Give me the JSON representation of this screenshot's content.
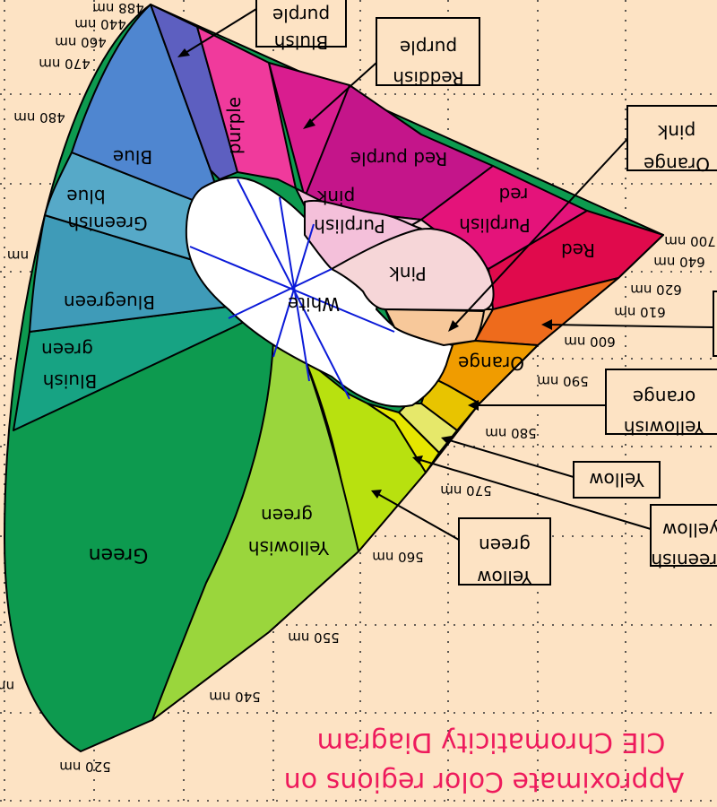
{
  "title_lines": [
    "CIE Chromaticity Diagram",
    "Approximate Color regions on"
  ],
  "wavelength_labels": [
    "440 nm",
    "460 nm",
    "470 nm",
    "480 nm",
    "nm",
    "520 nm",
    "540 nm",
    "550 nm",
    "560 nm",
    "570 nm",
    "580 nm",
    "590 nm",
    "600 nm",
    "610 nm",
    "620 nm",
    "640 nm",
    "700 nm",
    "nm",
    "488 nm"
  ],
  "regions": {
    "blue": "Blue",
    "greenish_blue_1": "Greenish",
    "greenish_blue_2": "blue",
    "bluegreen": "Bluegreen",
    "bluish_green_1": "Bluish",
    "bluish_green_2": "green",
    "green": "Green",
    "yellowish_green_1": "Yellowish",
    "yellowish_green_2": "green",
    "purple": "purple",
    "red_purple": "Red purple",
    "purplish_pink_1": "Purplish",
    "purplish_pink_2": "pink",
    "purplish_red_1": "Purplish",
    "purplish_red_2": "red",
    "red": "Red",
    "pink": "Pink",
    "white": "White",
    "orange": "Orange"
  },
  "callouts": {
    "bluish_purple": [
      "Bluish",
      "purple"
    ],
    "reddish_purple": [
      "Reddish",
      "purple"
    ],
    "orange_pink": [
      "Orange",
      "pink"
    ],
    "yellowish_orange": [
      "Yellowish",
      "orange"
    ],
    "yellow": [
      "Yellow"
    ],
    "greenish_yellow": [
      "Greenish",
      "yellow"
    ],
    "yellow_green": [
      "Yellow",
      "green"
    ]
  },
  "colors": {
    "background": "#fde3c4",
    "blue": "#4f86d0",
    "indigo": "#5d5fc0",
    "greenish_blue": "#56a9c8",
    "bluegreen": "#3f9bb8",
    "bluish_green": "#17a383",
    "green": "#0d9a4f",
    "yellowish_green": "#9ad63c",
    "yellow_green": "#b8e10f",
    "yellow": "#e6e600",
    "greenish_yellow": "#e6e86a",
    "yellowish_orange": "#e8c400",
    "orange": "#f09c00",
    "deep_orange": "#ee6b1c",
    "red": "#e00a4c",
    "purplish_red": "#e4137a",
    "red_purple": "#c4158a",
    "reddish_purple": "#d91d8f",
    "purple": "#f03a9c",
    "purplish_pink": "#f4c0da",
    "pink": "#f6d6d8",
    "orange_pink": "#f7c89a",
    "white": "#ffffff",
    "title": "#ee1a5c",
    "lines": "#0b1ad8"
  }
}
